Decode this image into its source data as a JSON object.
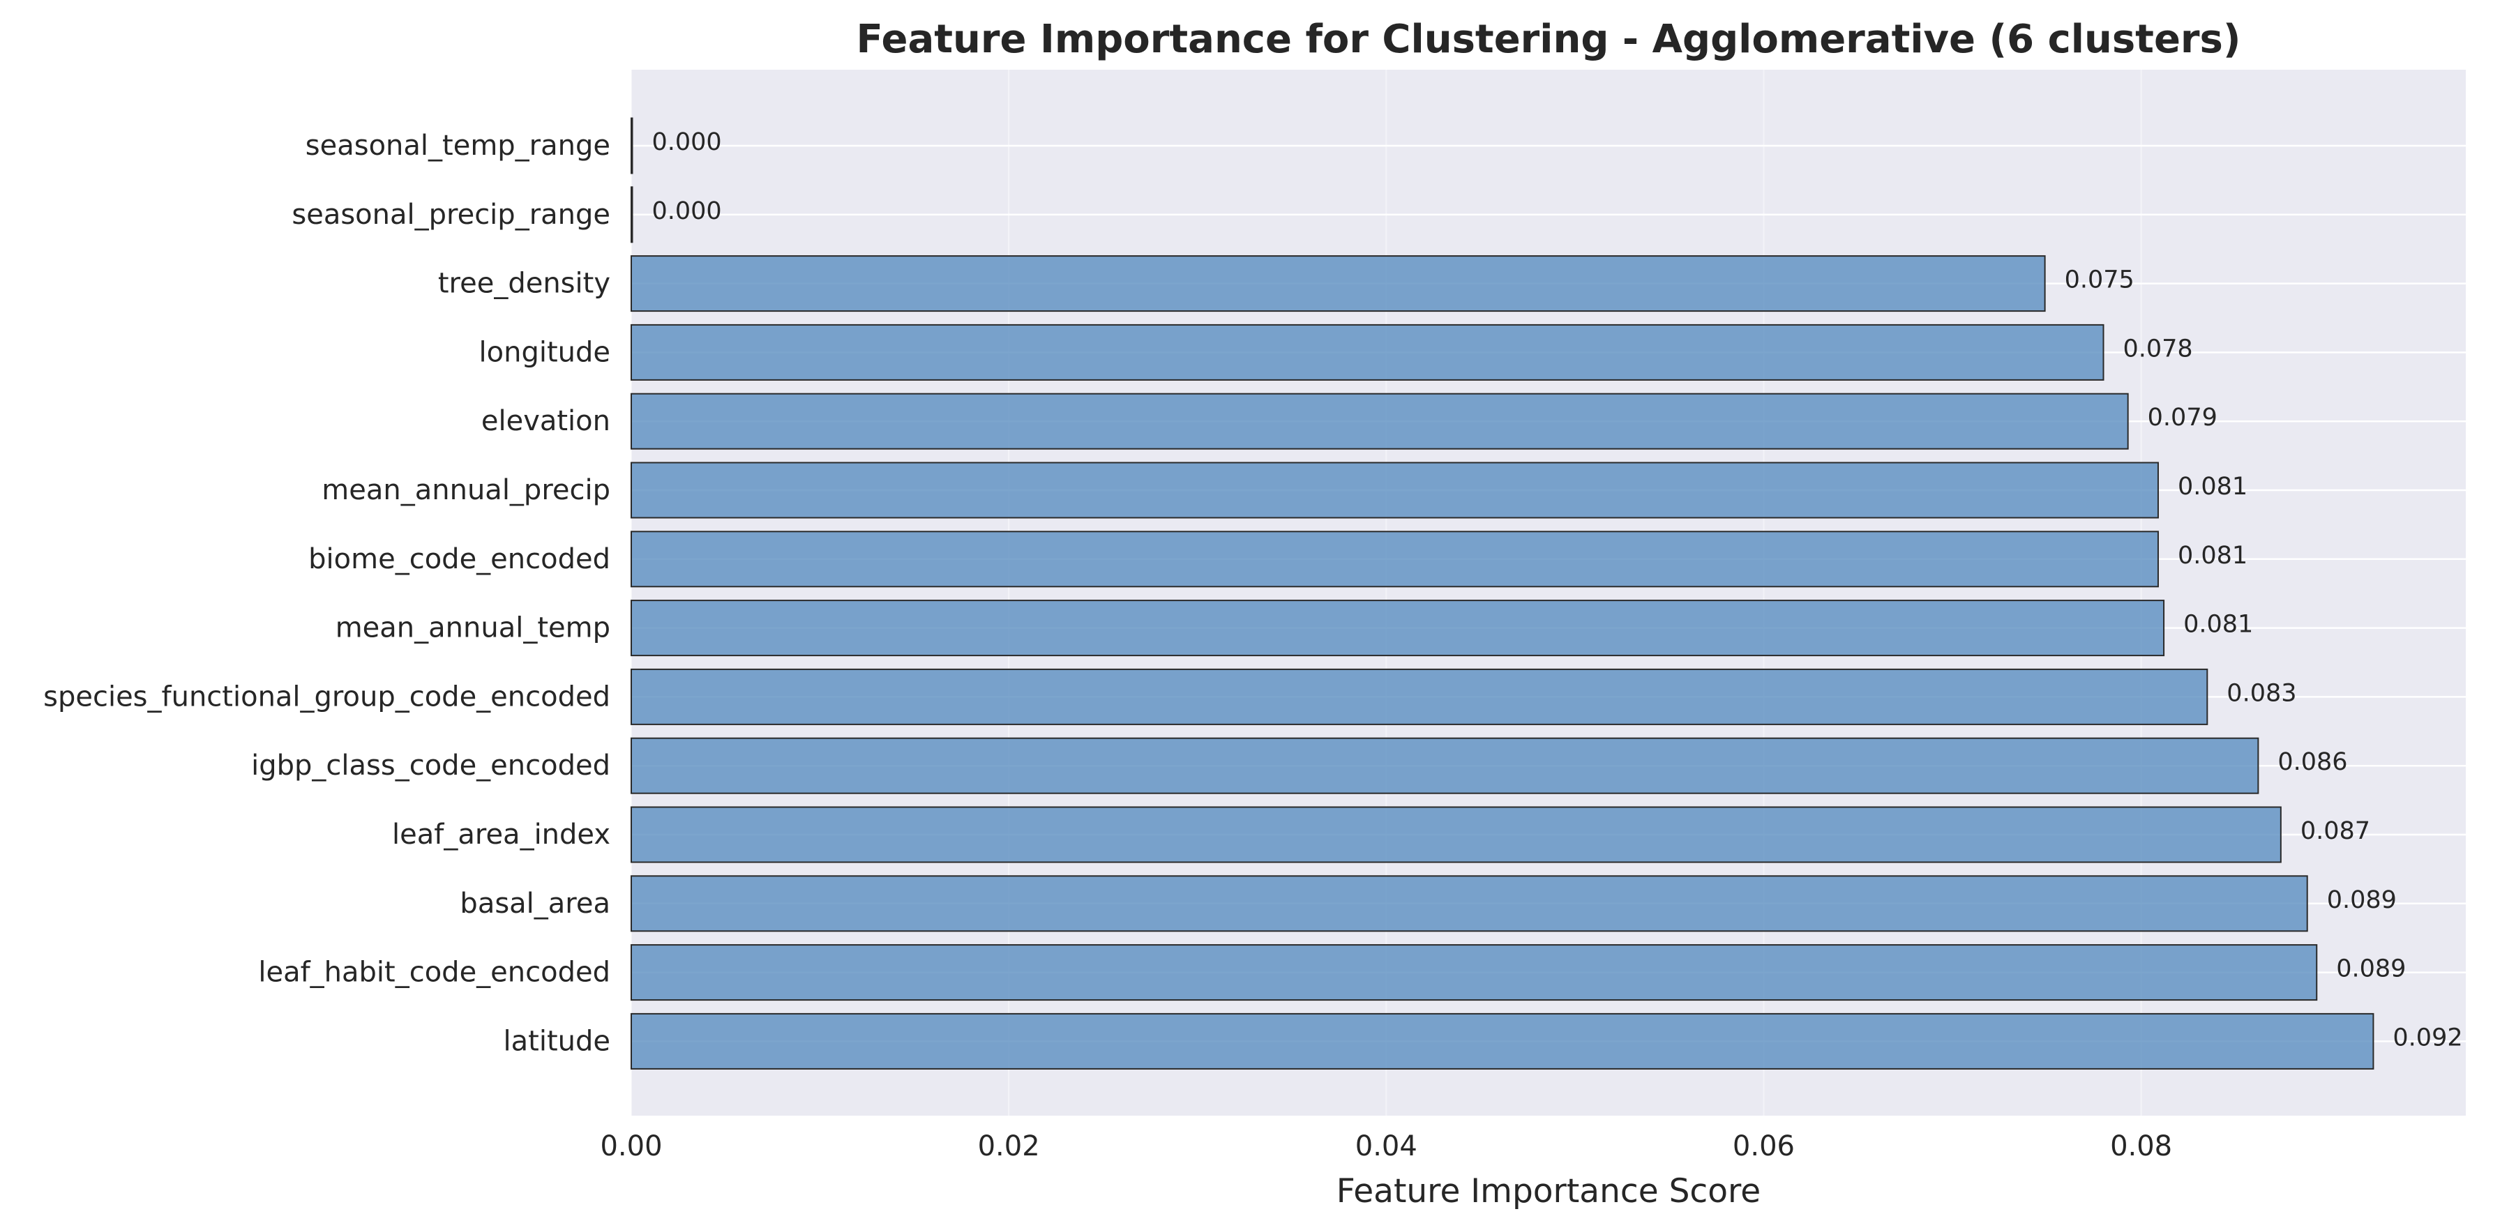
{
  "chart_data": {
    "type": "bar",
    "orientation": "horizontal",
    "title": "Feature Importance for Clustering - Agglomerative (6 clusters)",
    "xlabel": "Feature Importance Score",
    "ylabel": "",
    "xlim": [
      0,
      0.0972
    ],
    "xticks": [
      0.0,
      0.02,
      0.04,
      0.06,
      0.08
    ],
    "xtick_labels": [
      "0.00",
      "0.02",
      "0.04",
      "0.06",
      "0.08"
    ],
    "grid": true,
    "bar_color": "#5b8ec1",
    "background_color": "#eaeaf2",
    "categories": [
      "seasonal_temp_range",
      "seasonal_precip_range",
      "tree_density",
      "longitude",
      "elevation",
      "mean_annual_precip",
      "biome_code_encoded",
      "mean_annual_temp",
      "species_functional_group_code_encoded",
      "igbp_class_code_encoded",
      "leaf_area_index",
      "basal_area",
      "leaf_habit_code_encoded",
      "latitude"
    ],
    "values": [
      0.0,
      0.0,
      0.0749,
      0.078,
      0.0793,
      0.0809,
      0.0809,
      0.0812,
      0.0835,
      0.0862,
      0.0874,
      0.0888,
      0.0893,
      0.0923
    ],
    "value_labels": [
      "0.000",
      "0.000",
      "0.075",
      "0.078",
      "0.079",
      "0.081",
      "0.081",
      "0.081",
      "0.083",
      "0.086",
      "0.087",
      "0.089",
      "0.089",
      "0.092"
    ]
  }
}
